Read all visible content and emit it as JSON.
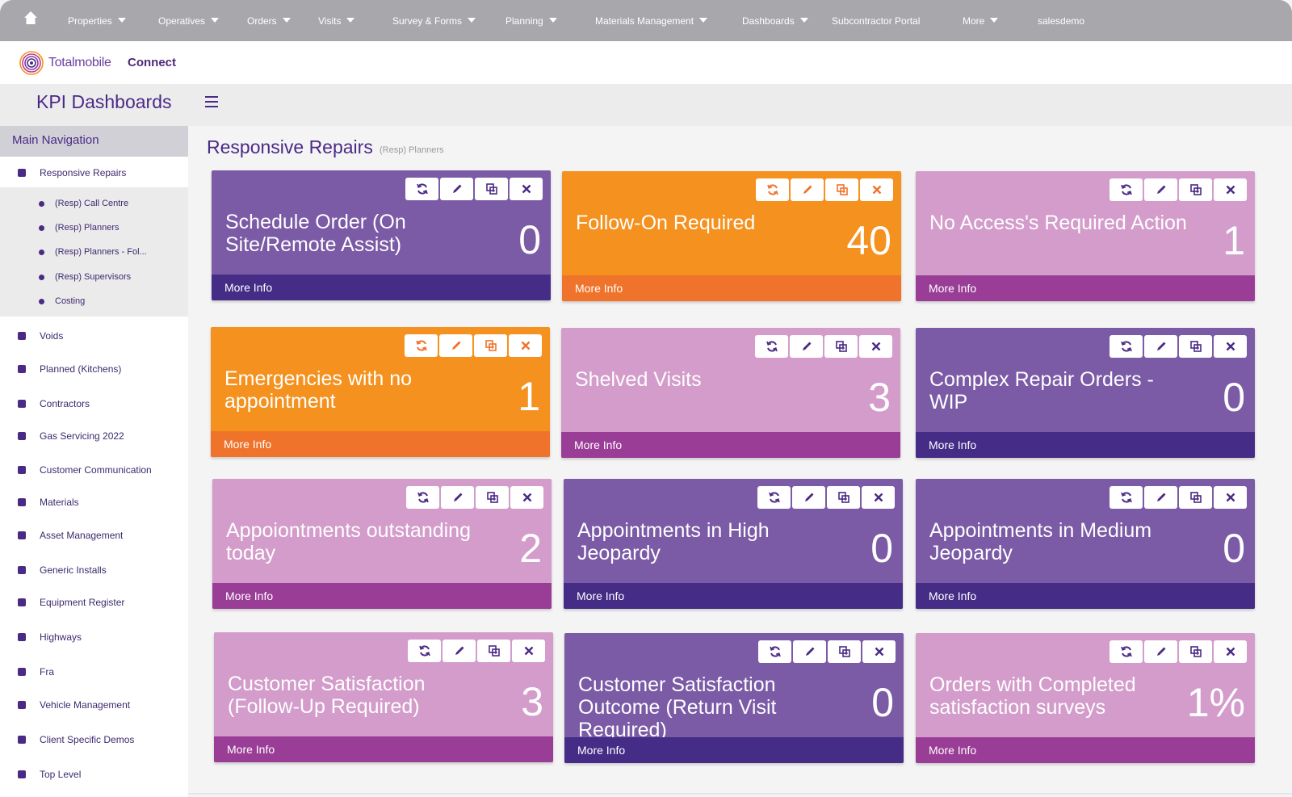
{
  "topnav": {
    "items": [
      {
        "label": "Properties",
        "caret": true
      },
      {
        "label": "Operatives",
        "caret": true
      },
      {
        "label": "Orders",
        "caret": true
      },
      {
        "label": "Visits",
        "caret": true
      },
      {
        "label": "Survey & Forms",
        "caret": true
      },
      {
        "label": "Planning",
        "caret": true
      },
      {
        "label": "Materials Management",
        "caret": true
      },
      {
        "label": "Dashboards",
        "caret": true
      },
      {
        "label": "Subcontractor Portal",
        "caret": false
      },
      {
        "label": "More",
        "caret": true
      },
      {
        "label": "salesdemo",
        "caret": false
      }
    ]
  },
  "brand": {
    "name": "Totalmobile",
    "product": "Connect"
  },
  "page": {
    "title": "KPI Dashboards"
  },
  "sidebar": {
    "heading": "Main Navigation",
    "items": [
      {
        "label": "Responsive Repairs"
      },
      {
        "label": "Voids"
      },
      {
        "label": "Planned (Kitchens)"
      },
      {
        "label": "Contractors"
      },
      {
        "label": "Gas Servicing 2022"
      },
      {
        "label": "Customer Communication"
      },
      {
        "label": "Materials"
      },
      {
        "label": "Asset Management"
      },
      {
        "label": "Generic Installs"
      },
      {
        "label": "Equipment Register"
      },
      {
        "label": "Highways"
      },
      {
        "label": "Fra"
      },
      {
        "label": "Vehicle Management"
      },
      {
        "label": "Client Specific Demos"
      },
      {
        "label": "Top Level"
      }
    ],
    "subitems": [
      {
        "label": "(Resp) Call Centre"
      },
      {
        "label": "(Resp) Planners"
      },
      {
        "label": "(Resp) Planners - Fol..."
      },
      {
        "label": "(Resp) Supervisors"
      },
      {
        "label": "Costing"
      }
    ]
  },
  "section": {
    "title": "Responsive Repairs",
    "subtitle": "(Resp) Planners"
  },
  "cards": [
    {
      "title": "Schedule Order (On Site/Remote Assist)",
      "value": "0",
      "more": "More Info",
      "theme": "purple"
    },
    {
      "title": "Follow-On Required",
      "value": "40",
      "more": "More Info",
      "theme": "orange"
    },
    {
      "title": "No Access's Required Action",
      "value": "1",
      "more": "More Info",
      "theme": "pink"
    },
    {
      "title": "Emergencies with no appointment",
      "value": "1",
      "more": "More Info",
      "theme": "orange"
    },
    {
      "title": "Shelved Visits",
      "value": "3",
      "more": "More Info",
      "theme": "pink"
    },
    {
      "title": "Complex Repair Orders - WIP",
      "value": "0",
      "more": "More Info",
      "theme": "purple"
    },
    {
      "title": "Appoiontments outstanding today",
      "value": "2",
      "more": "More Info",
      "theme": "pink"
    },
    {
      "title": "Appointments in High Jeopardy",
      "value": "0",
      "more": "More Info",
      "theme": "purple"
    },
    {
      "title": "Appointments in Medium Jeopardy",
      "value": "0",
      "more": "More Info",
      "theme": "purple"
    },
    {
      "title": "Customer Satisfaction (Follow-Up Required)",
      "value": "3",
      "more": "More Info",
      "theme": "pink"
    },
    {
      "title": "Customer Satisfaction Outcome (Return Visit Required)",
      "value": "0",
      "more": "More Info",
      "theme": "purple"
    },
    {
      "title": "Orders with Completed satisfaction surveys",
      "value": "1%",
      "more": "More Info",
      "theme": "pink"
    }
  ],
  "card_tools": [
    "refresh-icon",
    "pencil-icon",
    "copy-icon",
    "close-icon"
  ],
  "colors": {
    "purple": "#7b5aa6",
    "purple_footer": "#452c86",
    "orange": "#f5911e",
    "orange_footer": "#f0732b",
    "pink": "#d39ccb",
    "pink_footer": "#9a3d96",
    "nav": "#a8a8ac",
    "accent": "#4b2a86"
  }
}
